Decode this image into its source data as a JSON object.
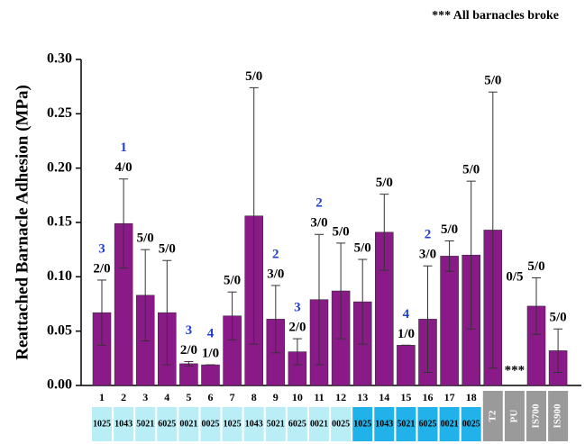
{
  "chart_data": {
    "type": "bar",
    "note": "*** All barnacles broke",
    "ylabel": "Reattached Barnacle Adhesion (MPa)",
    "categories": [
      "1",
      "2",
      "3",
      "4",
      "5",
      "6",
      "7",
      "8",
      "9",
      "10",
      "11",
      "12",
      "13",
      "14",
      "15",
      "16",
      "17",
      "18",
      null,
      null,
      null,
      null
    ],
    "codes": [
      "1025",
      "1043",
      "5021",
      "6025",
      "0021",
      "0025",
      "1025",
      "1043",
      "5021",
      "6025",
      "0021",
      "0025",
      "1025",
      "1043",
      "5021",
      "6025",
      "0021",
      "0025",
      "T2",
      "PU",
      "IS700",
      "IS900"
    ],
    "code_colors": [
      "#b9eef7",
      "#b9eef7",
      "#b9eef7",
      "#b9eef7",
      "#b9eef7",
      "#b9eef7",
      "#b9eef7",
      "#b9eef7",
      "#b9eef7",
      "#b9eef7",
      "#b9eef7",
      "#b9eef7",
      "#22b2ea",
      "#22b2ea",
      "#22b2ea",
      "#22b2ea",
      "#22b2ea",
      "#22b2ea",
      "#9a9a9a",
      "#9a9a9a",
      "#9a9a9a",
      "#9a9a9a"
    ],
    "values": [
      0.067,
      0.149,
      0.083,
      0.067,
      0.02,
      0.019,
      0.064,
      0.156,
      0.061,
      0.031,
      0.079,
      0.087,
      0.077,
      0.141,
      0.037,
      0.061,
      0.119,
      0.12,
      0.143,
      null,
      0.073,
      0.032
    ],
    "errors": [
      0.03,
      0.041,
      0.042,
      0.048,
      0.002,
      0,
      0.022,
      0.118,
      0.031,
      0.012,
      0.06,
      0.044,
      0.039,
      0.035,
      0,
      0.049,
      0.014,
      0.068,
      0.127,
      null,
      0.026,
      0.02
    ],
    "ratio_labels": [
      "2/0",
      "4/0",
      "5/0",
      "5/0",
      "2/0",
      "1/0",
      "5/0",
      "5/0",
      "3/0",
      "2/0",
      "3/0",
      "5/0",
      "5/0",
      "5/0",
      "1/0",
      "3/0",
      "5/0",
      "5/0",
      "5/0",
      "0/5",
      "5/0",
      "5/0"
    ],
    "count_labels": [
      "3",
      "1",
      null,
      null,
      "3",
      "4",
      null,
      null,
      "2",
      "3",
      "2",
      null,
      null,
      null,
      "4",
      "2",
      null,
      null,
      null,
      null,
      null,
      null
    ],
    "missing_label": "***",
    "color": "#8b1a89",
    "ylim": [
      0,
      0.3
    ],
    "yticks": [
      {
        "value": 0,
        "label": "0.00"
      },
      {
        "value": 0.05,
        "label": "0.05"
      },
      {
        "value": 0.1,
        "label": "0.10"
      },
      {
        "value": 0.15,
        "label": "0.15"
      },
      {
        "value": 0.2,
        "label": "0.20"
      },
      {
        "value": 0.25,
        "label": "0.25"
      },
      {
        "value": 0.3,
        "label": "0.30"
      }
    ]
  }
}
